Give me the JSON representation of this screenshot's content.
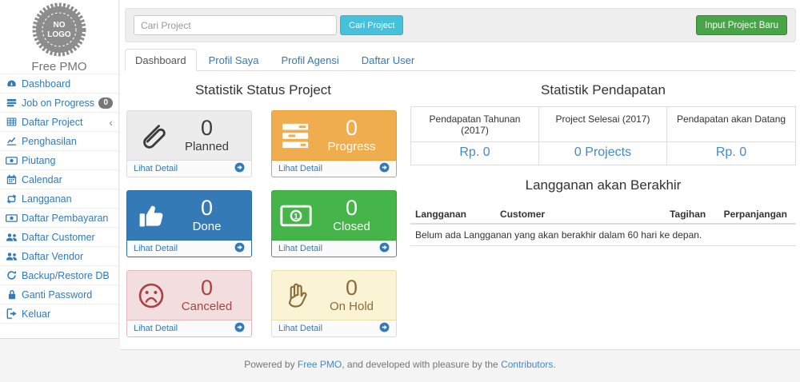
{
  "brand": {
    "logo_line1": "NO",
    "logo_line2": "LOGO",
    "name": "Free PMO"
  },
  "sidebar": {
    "items": [
      {
        "icon": "dashboard-icon",
        "label": "Dashboard"
      },
      {
        "icon": "list-icon",
        "label": "Job on Progress",
        "badge": "0"
      },
      {
        "icon": "table-icon",
        "label": "Daftar Project",
        "chevron": true
      },
      {
        "icon": "line-chart-icon",
        "label": "Penghasilan"
      },
      {
        "icon": "money-icon",
        "label": "Piutang"
      },
      {
        "icon": "calendar-icon",
        "label": "Calendar"
      },
      {
        "icon": "retweet-icon",
        "label": "Langganan"
      },
      {
        "icon": "money-icon",
        "label": "Daftar Pembayaran"
      },
      {
        "icon": "users-icon",
        "label": "Daftar Customer"
      },
      {
        "icon": "users-icon",
        "label": "Daftar Vendor"
      },
      {
        "icon": "refresh-icon",
        "label": "Backup/Restore DB"
      },
      {
        "icon": "lock-icon",
        "label": "Ganti Password"
      },
      {
        "icon": "signout-icon",
        "label": "Keluar"
      }
    ]
  },
  "topbar": {
    "search_placeholder": "Cari Project",
    "search_button": "Cari Project",
    "new_project_button": "Input Project Baru"
  },
  "tabs": [
    {
      "label": "Dashboard",
      "active": true
    },
    {
      "label": "Profil Saya",
      "active": false
    },
    {
      "label": "Profil Agensi",
      "active": false
    },
    {
      "label": "Daftar User",
      "active": false
    }
  ],
  "status_section": {
    "title": "Statistik Status Project",
    "detail_label": "Lihat Detail",
    "cards": [
      {
        "label": "Planned",
        "count": "0",
        "icon": "paperclip-icon",
        "theme": "default"
      },
      {
        "label": "Progress",
        "count": "0",
        "icon": "tasks-icon",
        "theme": "warning"
      },
      {
        "label": "Done",
        "count": "0",
        "icon": "thumbs-up-icon",
        "theme": "primary"
      },
      {
        "label": "Closed",
        "count": "0",
        "icon": "banknote-icon",
        "theme": "success"
      },
      {
        "label": "Canceled",
        "count": "0",
        "icon": "frown-icon",
        "theme": "danger-light"
      },
      {
        "label": "On Hold",
        "count": "0",
        "icon": "hand-icon",
        "theme": "warning-light"
      }
    ]
  },
  "income_section": {
    "title": "Statistik Pendapatan",
    "headers": [
      "Pendapatan Tahunan (2017)",
      "Project Selesai (2017)",
      "Pendapatan akan Datang"
    ],
    "values": [
      "Rp. 0",
      "0 Projects",
      "Rp. 0"
    ]
  },
  "subscription_section": {
    "title": "Langganan akan Berakhir",
    "headers": [
      "Langganan",
      "Customer",
      "Tagihan",
      "Perpanjangan"
    ],
    "empty_message": "Belum ada Langganan yang akan berakhir dalam 60 hari ke depan."
  },
  "footer": {
    "prefix": "Powered by ",
    "link1": "Free PMO",
    "middle": ", and developed with pleasure by the ",
    "link2": "Contributors",
    "suffix": "."
  },
  "colors": {
    "accent_blue": "#337ab7",
    "link_blue": "#428bca",
    "search_button": "#46c1dc",
    "new_project_button": "#47a447",
    "card_progress": "#f0ad4e",
    "card_done": "#337ab7",
    "card_closed": "#45b549",
    "card_canceled_bg": "#f2dede",
    "card_canceled_text": "#a94442",
    "card_onhold_bg": "#faf4d5",
    "card_onhold_text": "#8a6d3b",
    "badge_bg": "#777777"
  }
}
